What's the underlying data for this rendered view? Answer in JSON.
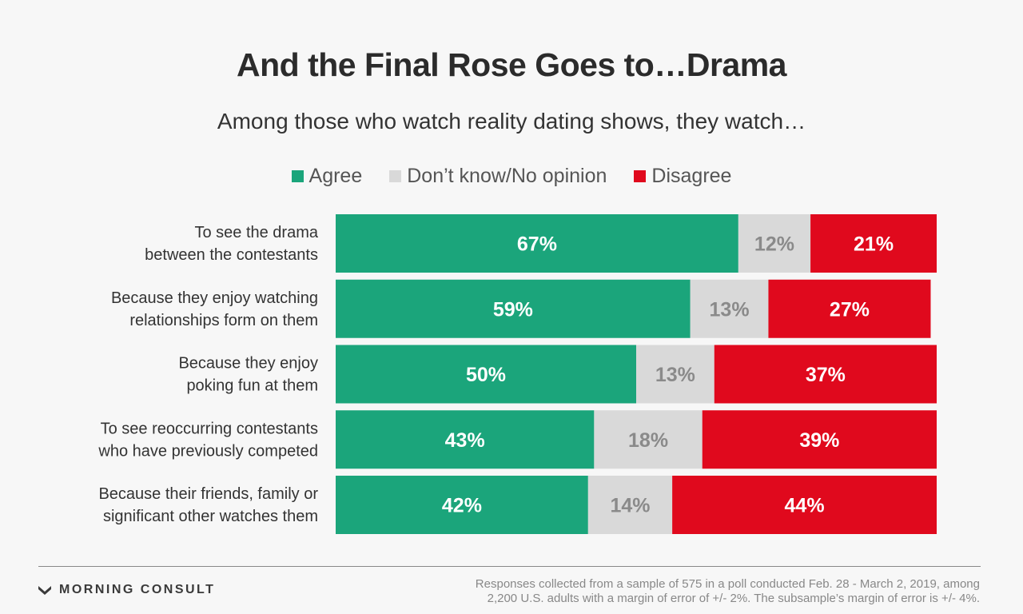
{
  "chart_data": {
    "type": "bar",
    "orientation": "horizontal",
    "stacked": true,
    "title": "And the Final Rose Goes to…Drama",
    "subtitle": "Among those who watch reality dating shows, they watch…",
    "categories": [
      [
        "To see the drama",
        "between the contestants"
      ],
      [
        "Because they enjoy watching",
        "relationships form on them"
      ],
      [
        "Because they enjoy",
        "poking fun at them"
      ],
      [
        "To see reoccurring contestants",
        "who have previously competed"
      ],
      [
        "Because their friends, family or",
        "significant other watches them"
      ]
    ],
    "series": [
      {
        "name": "Agree",
        "color": "#1ba57b",
        "label_color": "#ffffff",
        "values": [
          67,
          59,
          50,
          43,
          42
        ]
      },
      {
        "name": "Don’t know/No opinion",
        "color": "#d9d9d9",
        "label_color": "#8a8a8a",
        "values": [
          12,
          13,
          13,
          18,
          14
        ]
      },
      {
        "name": "Disagree",
        "color": "#e0091d",
        "label_color": "#ffffff",
        "values": [
          21,
          27,
          37,
          39,
          44
        ]
      }
    ],
    "value_suffix": "%",
    "xlim": [
      0,
      100
    ],
    "legend": "top-center",
    "grid": false
  },
  "footer": {
    "brand": "MORNING CONSULT",
    "note_line1": "Responses collected from a sample of 575 in a poll conducted Feb. 28 - March 2, 2019, among",
    "note_line2": "2,200 U.S. adults with a margin of error of +/- 2%. The subsample’s margin of error is +/- 4%."
  }
}
